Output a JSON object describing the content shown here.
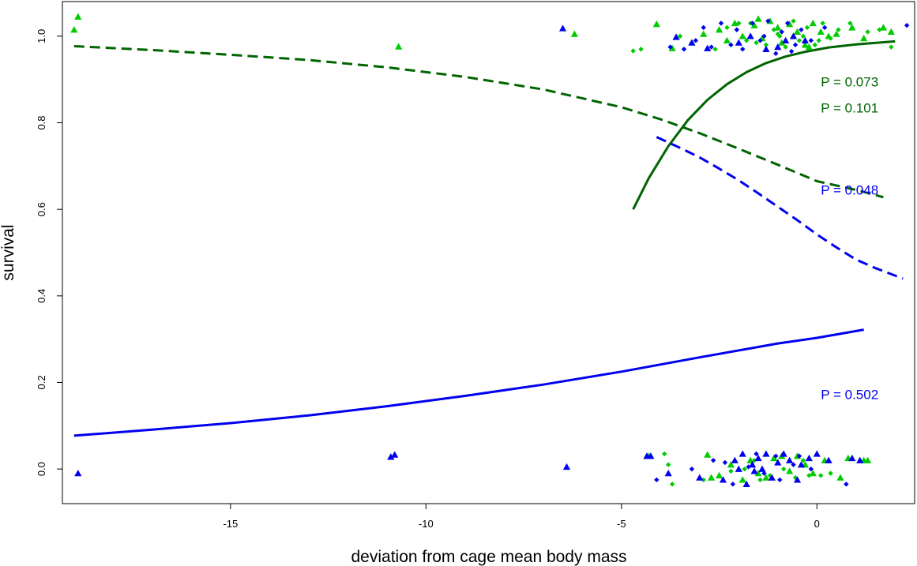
{
  "chart_data": {
    "type": "scatter",
    "xlabel": "deviation from cage mean body mass",
    "ylabel": "survival",
    "xlim": [
      -19.3,
      2.5
    ],
    "ylim": [
      -0.08,
      1.08
    ],
    "x_ticks": [
      -15,
      -10,
      -5,
      0
    ],
    "x_tick_labels": [
      "-15",
      "-10",
      "-5",
      "0"
    ],
    "y_ticks": [
      0.0,
      0.2,
      0.4,
      0.6,
      0.8,
      1.0
    ],
    "y_tick_labels": [
      "0.0",
      "0.2",
      "0.4",
      "0.6",
      "0.8",
      "1.0"
    ],
    "grid": false,
    "colors": {
      "green": "#00cc00",
      "dark_green": "#006400",
      "blue": "#0000ee"
    },
    "curves": [
      {
        "id": "dark-green-dashed",
        "color": "#006400",
        "dash": true,
        "x": [
          -19.0,
          -17,
          -15,
          -13,
          -11,
          -9,
          -7,
          -5,
          -4,
          -3,
          -2,
          -1,
          0,
          1,
          1.7
        ],
        "y": [
          0.977,
          0.968,
          0.957,
          0.945,
          0.928,
          0.906,
          0.877,
          0.836,
          0.808,
          0.776,
          0.74,
          0.703,
          0.665,
          0.645,
          0.628
        ]
      },
      {
        "id": "dark-green-solid",
        "color": "#006400",
        "dash": false,
        "x": [
          -4.7,
          -4.3,
          -3.8,
          -3.3,
          -2.8,
          -2.3,
          -1.8,
          -1.3,
          -0.8,
          -0.3,
          0.3,
          1.0,
          2.0
        ],
        "y": [
          0.6,
          0.672,
          0.746,
          0.806,
          0.853,
          0.889,
          0.917,
          0.938,
          0.953,
          0.964,
          0.974,
          0.981,
          0.988
        ]
      },
      {
        "id": "blue-dashed",
        "color": "#0000ee",
        "dash": true,
        "x": [
          -4.1,
          -3.5,
          -3.0,
          -2.5,
          -2.0,
          -1.5,
          -1.0,
          -0.5,
          0.0,
          0.5,
          1.0,
          1.5,
          2.2
        ],
        "y": [
          0.767,
          0.742,
          0.72,
          0.694,
          0.667,
          0.637,
          0.606,
          0.575,
          0.542,
          0.512,
          0.484,
          0.464,
          0.44
        ]
      },
      {
        "id": "blue-solid",
        "color": "#0000ee",
        "dash": false,
        "x": [
          -19.0,
          -17,
          -15,
          -13,
          -11,
          -9,
          -7,
          -5,
          -3,
          -1,
          0,
          1.2
        ],
        "y": [
          0.077,
          0.091,
          0.106,
          0.124,
          0.145,
          0.169,
          0.195,
          0.225,
          0.258,
          0.29,
          0.303,
          0.322
        ]
      }
    ],
    "annotations": [
      {
        "text": "P = 0.073",
        "x": 0.1,
        "y": 0.895,
        "color": "#006400"
      },
      {
        "text": "P = 0.101",
        "x": 0.1,
        "y": 0.835,
        "color": "#006400"
      },
      {
        "text": "P = 0.048",
        "x": 0.1,
        "y": 0.645,
        "color": "#0000ee"
      },
      {
        "text": "P = 0.502",
        "x": 0.1,
        "y": 0.173,
        "color": "#0000ee"
      }
    ],
    "point_groups": [
      {
        "name": "green-triangles",
        "color": "#00cc00",
        "shape": "triangle",
        "points": [
          [
            -19.0,
            1.015
          ],
          [
            -18.9,
            1.045
          ],
          [
            -10.7,
            0.976
          ],
          [
            -6.2,
            1.005
          ],
          [
            -4.1,
            1.028
          ],
          [
            -3.7,
            0.972
          ],
          [
            -2.9,
            1.005
          ],
          [
            -2.5,
            1.015
          ],
          [
            -2.1,
            1.03
          ],
          [
            -1.9,
            1.0
          ],
          [
            -1.6,
            1.025
          ],
          [
            -1.4,
            0.995
          ],
          [
            -1.2,
            1.035
          ],
          [
            -1.0,
            1.02
          ],
          [
            -0.9,
            0.985
          ],
          [
            -0.7,
            1.028
          ],
          [
            -0.5,
            1.01
          ],
          [
            -0.3,
            0.98
          ],
          [
            -0.1,
            1.03
          ],
          [
            0.3,
            1.0
          ],
          [
            0.5,
            1.005
          ],
          [
            0.9,
            1.02
          ],
          [
            1.2,
            0.995
          ],
          [
            1.7,
            1.02
          ],
          [
            1.9,
            1.01
          ],
          [
            -1.5,
            1.04
          ],
          [
            -0.6,
            1.0
          ],
          [
            -2.3,
            0.99
          ],
          [
            -0.2,
            0.975
          ],
          [
            0.1,
            1.01
          ],
          [
            -4.3,
            0.03
          ],
          [
            -2.8,
            0.033
          ],
          [
            -2.7,
            -0.02
          ],
          [
            -2.5,
            -0.015
          ],
          [
            -1.7,
            0.02
          ],
          [
            -1.5,
            -0.01
          ],
          [
            -1.3,
            -0.02
          ],
          [
            -1.1,
            0.025
          ],
          [
            -0.9,
            0.03
          ],
          [
            -0.7,
            -0.005
          ],
          [
            -0.5,
            0.03
          ],
          [
            -0.3,
            0.01
          ],
          [
            -0.1,
            -0.01
          ],
          [
            0.2,
            0.02
          ],
          [
            0.6,
            -0.02
          ],
          [
            1.2,
            0.02
          ],
          [
            -1.9,
            -0.025
          ],
          [
            -2.2,
            0.01
          ],
          [
            0.8,
            0.025
          ],
          [
            1.3,
            0.02
          ]
        ]
      },
      {
        "name": "green-diamonds",
        "color": "#00cc00",
        "shape": "diamond",
        "points": [
          [
            -4.7,
            0.966
          ],
          [
            -4.5,
            0.97
          ],
          [
            -3.5,
            1.0
          ],
          [
            -3.2,
            0.985
          ],
          [
            -2.6,
            0.97
          ],
          [
            -2.3,
            1.02
          ],
          [
            -2.0,
            1.03
          ],
          [
            -1.8,
            0.99
          ],
          [
            -1.7,
            1.03
          ],
          [
            -1.3,
            0.98
          ],
          [
            -1.1,
            1.015
          ],
          [
            -0.95,
            1.0
          ],
          [
            -0.8,
            0.975
          ],
          [
            -0.6,
            1.035
          ],
          [
            -0.45,
            0.99
          ],
          [
            -0.25,
            1.02
          ],
          [
            -0.05,
            0.98
          ],
          [
            0.15,
            1.03
          ],
          [
            0.35,
            0.995
          ],
          [
            0.55,
            1.015
          ],
          [
            0.85,
            1.03
          ],
          [
            1.3,
            1.01
          ],
          [
            1.6,
            1.015
          ],
          [
            1.9,
            0.975
          ],
          [
            -1.55,
            0.985
          ],
          [
            -0.35,
            1.0
          ],
          [
            0.05,
            0.99
          ],
          [
            -1.0,
            1.005
          ],
          [
            -3.9,
            0.035
          ],
          [
            -3.8,
            0.01
          ],
          [
            -3.7,
            -0.035
          ],
          [
            -2.9,
            -0.025
          ],
          [
            -2.2,
            -0.005
          ],
          [
            -1.6,
            0.02
          ],
          [
            -1.45,
            -0.025
          ],
          [
            -1.2,
            -0.015
          ],
          [
            -0.85,
            0.0
          ],
          [
            -0.55,
            -0.02
          ],
          [
            -0.35,
            0.02
          ],
          [
            -0.2,
            -0.015
          ],
          [
            0.1,
            -0.015
          ],
          [
            0.35,
            -0.01
          ],
          [
            -1.85,
            0.0
          ]
        ]
      },
      {
        "name": "blue-triangles",
        "color": "#0000ee",
        "shape": "triangle",
        "points": [
          [
            -6.5,
            1.018
          ],
          [
            -3.2,
            0.985
          ],
          [
            -2.8,
            0.972
          ],
          [
            -2.0,
            0.985
          ],
          [
            -1.7,
            1.0
          ],
          [
            -1.3,
            0.97
          ],
          [
            -1.0,
            0.975
          ],
          [
            -0.8,
            0.99
          ],
          [
            -0.6,
            1.0
          ],
          [
            -0.3,
            0.99
          ],
          [
            -3.6,
            0.998
          ],
          [
            -18.9,
            -0.01
          ],
          [
            -10.9,
            0.028
          ],
          [
            -10.8,
            0.033
          ],
          [
            -6.4,
            0.005
          ],
          [
            -4.35,
            0.03
          ],
          [
            -4.25,
            0.03
          ],
          [
            -3.8,
            -0.01
          ],
          [
            -3.0,
            -0.02
          ],
          [
            -2.4,
            -0.025
          ],
          [
            -2.0,
            0.0
          ],
          [
            -1.9,
            0.035
          ],
          [
            -1.8,
            -0.035
          ],
          [
            -1.6,
            -0.005
          ],
          [
            -1.5,
            0.025
          ],
          [
            -1.3,
            0.035
          ],
          [
            -1.15,
            -0.02
          ],
          [
            -1.0,
            0.015
          ],
          [
            -0.85,
            0.035
          ],
          [
            -0.7,
            0.02
          ],
          [
            -0.5,
            -0.025
          ],
          [
            -0.4,
            0.01
          ],
          [
            -0.2,
            0.025
          ],
          [
            0.0,
            0.035
          ],
          [
            0.3,
            0.02
          ],
          [
            0.9,
            0.025
          ],
          [
            1.1,
            0.02
          ],
          [
            -2.1,
            0.02
          ],
          [
            -1.4,
            0.0
          ],
          [
            -1.65,
            0.01
          ]
        ]
      },
      {
        "name": "blue-diamonds",
        "color": "#0000ee",
        "shape": "diamond",
        "points": [
          [
            -3.4,
            0.97
          ],
          [
            -3.1,
            0.99
          ],
          [
            -2.9,
            1.02
          ],
          [
            -2.7,
            0.975
          ],
          [
            -2.45,
            1.03
          ],
          [
            -2.2,
            0.98
          ],
          [
            -2.05,
            1.015
          ],
          [
            -1.9,
            0.97
          ],
          [
            -1.65,
            1.03
          ],
          [
            -1.45,
            0.99
          ],
          [
            -1.25,
            1.035
          ],
          [
            -1.05,
            0.96
          ],
          [
            -0.9,
            1.01
          ],
          [
            -0.75,
            1.03
          ],
          [
            -0.55,
            0.98
          ],
          [
            -0.4,
            1.015
          ],
          [
            -0.15,
            0.99
          ],
          [
            0.2,
            1.02
          ],
          [
            2.3,
            1.025
          ],
          [
            -3.75,
            0.975
          ],
          [
            -1.35,
            1.0
          ],
          [
            -0.65,
            0.965
          ],
          [
            -4.1,
            -0.025
          ],
          [
            -3.2,
            0.0
          ],
          [
            -2.65,
            0.02
          ],
          [
            -2.15,
            -0.035
          ],
          [
            -1.75,
            0.005
          ],
          [
            -1.55,
            0.035
          ],
          [
            -1.35,
            -0.01
          ],
          [
            -1.05,
            0.03
          ],
          [
            -0.95,
            -0.025
          ],
          [
            -0.6,
            0.01
          ],
          [
            -0.45,
            0.03
          ],
          [
            0.75,
            -0.035
          ],
          [
            -0.15,
            0.0
          ],
          [
            -2.35,
            0.015
          ]
        ]
      }
    ]
  }
}
